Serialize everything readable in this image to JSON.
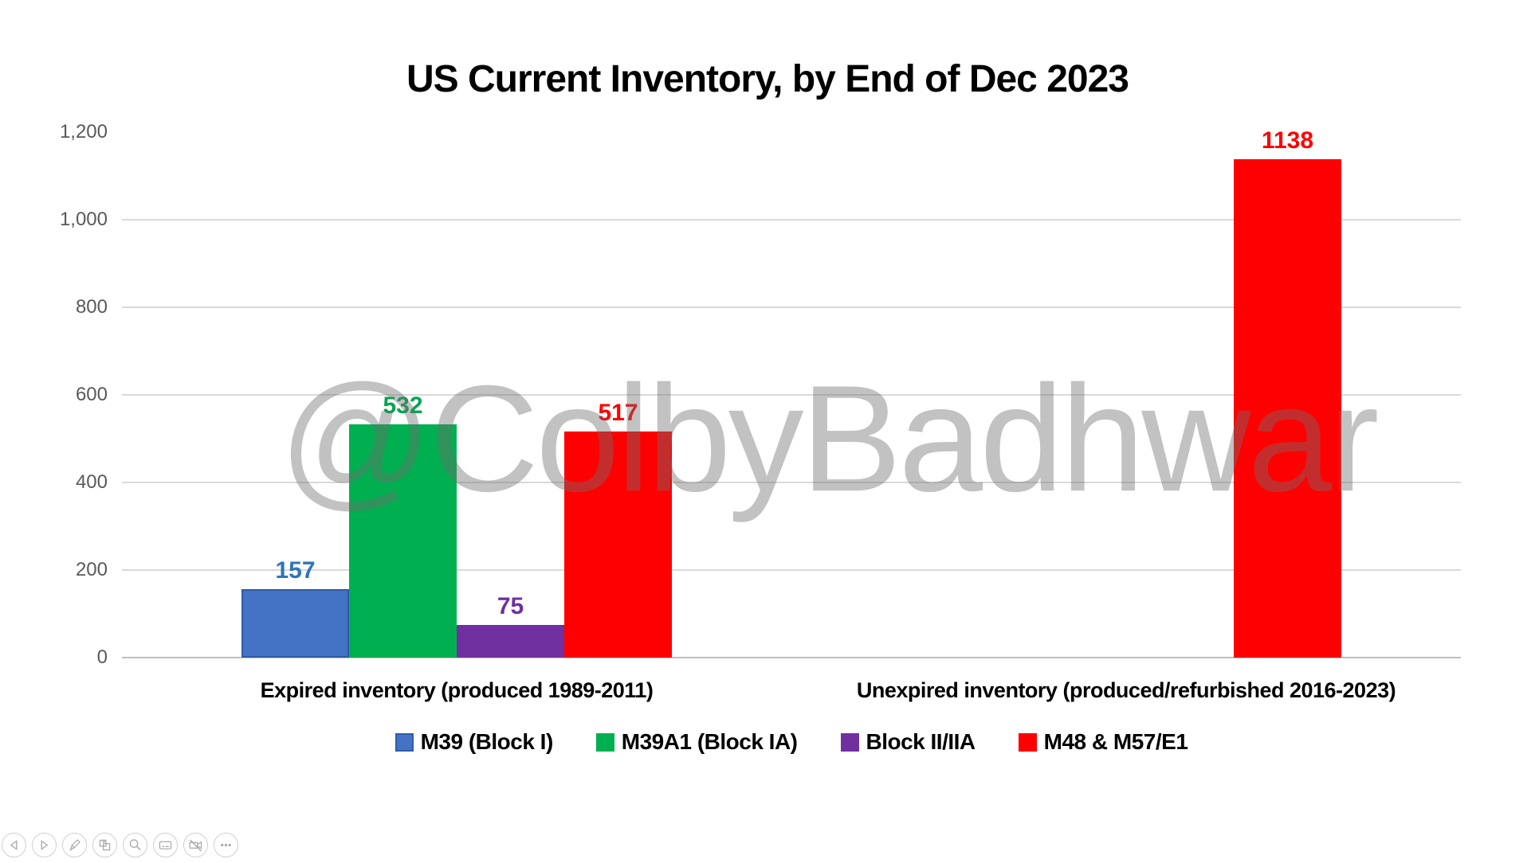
{
  "title": "US Current Inventory, by End of Dec 2023",
  "watermark": "@ColbyBadhwar",
  "chart_data": {
    "type": "bar",
    "title": "US Current Inventory, by End of Dec 2023",
    "categories": [
      "Expired inventory (produced 1989-2011)",
      "Unexpired inventory (produced/refurbished 2016-2023)"
    ],
    "series": [
      {
        "name": "M39 (Block I)",
        "color": "#4472C4",
        "border_color": "#2E5CA6",
        "label_color": "#2E75B6",
        "values": [
          157,
          null
        ]
      },
      {
        "name": "M39A1 (Block IA)",
        "color": "#00B050",
        "border_color": "#00B050",
        "label_color": "#00A651",
        "values": [
          532,
          null
        ]
      },
      {
        "name": "Block II/IIA",
        "color": "#7030A0",
        "border_color": "#7030A0",
        "label_color": "#7030A0",
        "values": [
          75,
          null
        ]
      },
      {
        "name": "M48 & M57/E1",
        "color": "#FF0000",
        "border_color": "#FF0000",
        "label_color": "#FF0000",
        "values": [
          517,
          1138
        ]
      }
    ],
    "xlabel": "",
    "ylabel": "",
    "ylim": [
      0,
      1200
    ],
    "ytick_interval": 200,
    "yticks": [
      {
        "value": 0,
        "label": "0"
      },
      {
        "value": 200,
        "label": "200"
      },
      {
        "value": 400,
        "label": "400"
      },
      {
        "value": 600,
        "label": "600"
      },
      {
        "value": 800,
        "label": "800"
      },
      {
        "value": 1000,
        "label": "1,000"
      },
      {
        "value": 1200,
        "label": "1,200"
      }
    ],
    "gridlines_at": [
      0,
      200,
      400,
      600,
      800,
      1000
    ],
    "grid": true,
    "legend_position": "bottom",
    "data_labels": true
  },
  "colors": {
    "gridline": "#D9D9D9",
    "axis_line": "#BFBFBF",
    "ytick_text": "#595959",
    "watermark_gray": "#6E6E6E"
  },
  "toolbar": {
    "buttons": [
      {
        "name": "previous-slide"
      },
      {
        "name": "next-slide"
      },
      {
        "name": "pen-tools"
      },
      {
        "name": "see-all-slides"
      },
      {
        "name": "zoom-into-slide"
      },
      {
        "name": "toggle-subtitles"
      },
      {
        "name": "toggle-camera"
      },
      {
        "name": "more-options"
      }
    ]
  }
}
